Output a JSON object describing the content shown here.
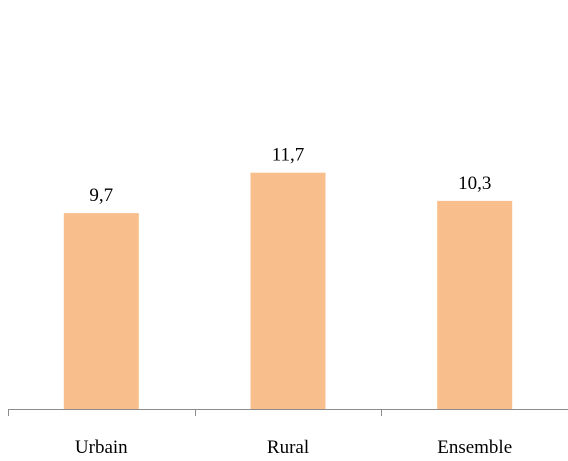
{
  "chart_data": {
    "type": "bar",
    "categories": [
      "Urbain",
      "Rural",
      "Ensemble"
    ],
    "values": [
      9.7,
      11.7,
      10.3
    ],
    "value_labels": [
      "9,7",
      "11,7",
      "10,3"
    ],
    "title": "",
    "xlabel": "",
    "ylabel": "",
    "ylim": [
      0,
      20
    ],
    "grid": false,
    "legend": "none",
    "bar_color": "#F8BF8C",
    "axis_color": "#8C8C8C"
  }
}
